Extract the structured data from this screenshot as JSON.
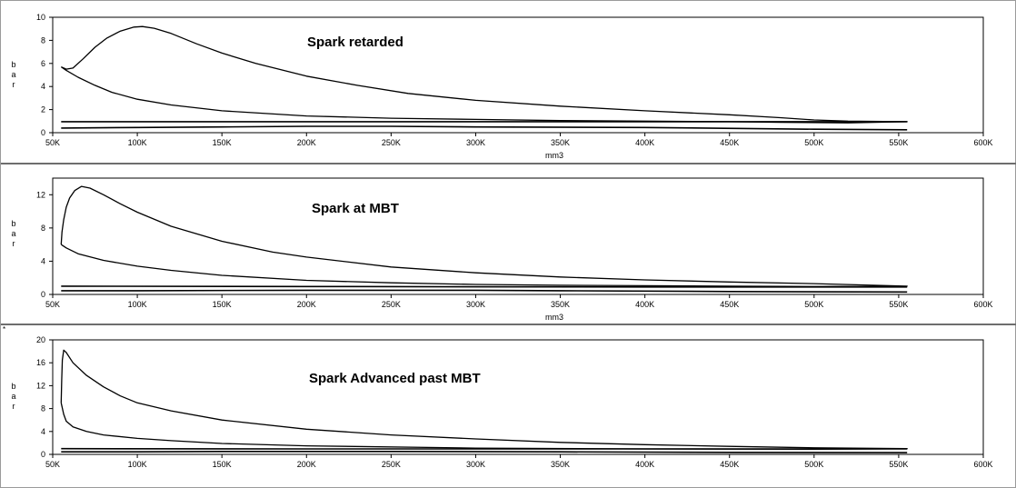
{
  "window": {
    "marker": "*"
  },
  "chart_data": [
    {
      "type": "line",
      "title": "Spark retarded",
      "xlabel": "mm3",
      "ylabel": "bar",
      "xlim": [
        50000,
        600000
      ],
      "ylim": [
        0,
        10
      ],
      "x_ticks": [
        "50K",
        "100K",
        "150K",
        "200K",
        "250K",
        "300K",
        "350K",
        "400K",
        "450K",
        "500K",
        "550K",
        "600K"
      ],
      "y_ticks": [
        "0",
        "2",
        "4",
        "6",
        "8",
        "10"
      ],
      "grid": false,
      "series": [
        {
          "points": [
            [
              55000,
              5.7
            ],
            [
              58000,
              5.5
            ],
            [
              62000,
              5.6
            ],
            [
              68000,
              6.4
            ],
            [
              75000,
              7.4
            ],
            [
              82000,
              8.2
            ],
            [
              90000,
              8.8
            ],
            [
              98000,
              9.15
            ],
            [
              103000,
              9.2
            ],
            [
              110000,
              9.05
            ],
            [
              120000,
              8.6
            ],
            [
              135000,
              7.7
            ],
            [
              150000,
              6.9
            ],
            [
              170000,
              6.0
            ],
            [
              200000,
              4.9
            ],
            [
              230000,
              4.1
            ],
            [
              260000,
              3.4
            ],
            [
              300000,
              2.8
            ],
            [
              350000,
              2.3
            ],
            [
              400000,
              1.9
            ],
            [
              450000,
              1.55
            ],
            [
              480000,
              1.3
            ],
            [
              500000,
              1.1
            ],
            [
              520000,
              1.0
            ],
            [
              555000,
              0.95
            ],
            [
              520000,
              0.85
            ],
            [
              480000,
              0.9
            ],
            [
              450000,
              0.95
            ],
            [
              400000,
              1.0
            ],
            [
              350000,
              1.05
            ],
            [
              300000,
              1.15
            ],
            [
              250000,
              1.25
            ],
            [
              200000,
              1.45
            ],
            [
              150000,
              1.9
            ],
            [
              120000,
              2.4
            ],
            [
              100000,
              2.9
            ],
            [
              85000,
              3.5
            ],
            [
              75000,
              4.1
            ],
            [
              65000,
              4.8
            ],
            [
              58000,
              5.4
            ],
            [
              55000,
              5.7
            ]
          ]
        },
        {
          "points": [
            [
              55000,
              0.95
            ],
            [
              100000,
              0.95
            ],
            [
              200000,
              0.95
            ],
            [
              300000,
              0.95
            ],
            [
              400000,
              0.95
            ],
            [
              500000,
              0.95
            ],
            [
              555000,
              0.95
            ]
          ]
        },
        {
          "points": [
            [
              555000,
              0.25
            ],
            [
              500000,
              0.3
            ],
            [
              400000,
              0.45
            ],
            [
              300000,
              0.5
            ],
            [
              250000,
              0.55
            ],
            [
              200000,
              0.55
            ],
            [
              150000,
              0.5
            ],
            [
              100000,
              0.45
            ],
            [
              55000,
              0.4
            ]
          ]
        }
      ]
    },
    {
      "type": "line",
      "title": "Spark at MBT",
      "xlabel": "mm3",
      "ylabel": "bar",
      "xlim": [
        50000,
        600000
      ],
      "ylim": [
        0,
        14
      ],
      "x_ticks": [
        "50K",
        "100K",
        "150K",
        "200K",
        "250K",
        "300K",
        "350K",
        "400K",
        "450K",
        "500K",
        "550K",
        "600K"
      ],
      "y_ticks": [
        "0",
        "4",
        "8",
        "12"
      ],
      "grid": false,
      "series": [
        {
          "points": [
            [
              55000,
              6.0
            ],
            [
              55500,
              7.5
            ],
            [
              56500,
              9.0
            ],
            [
              58000,
              10.5
            ],
            [
              60000,
              11.6
            ],
            [
              63000,
              12.5
            ],
            [
              67000,
              13.0
            ],
            [
              72000,
              12.8
            ],
            [
              80000,
              12.0
            ],
            [
              90000,
              10.9
            ],
            [
              100000,
              9.9
            ],
            [
              120000,
              8.2
            ],
            [
              150000,
              6.4
            ],
            [
              180000,
              5.1
            ],
            [
              200000,
              4.5
            ],
            [
              250000,
              3.3
            ],
            [
              300000,
              2.6
            ],
            [
              350000,
              2.1
            ],
            [
              400000,
              1.75
            ],
            [
              450000,
              1.5
            ],
            [
              500000,
              1.3
            ],
            [
              555000,
              1.0
            ],
            [
              500000,
              0.95
            ],
            [
              450000,
              1.0
            ],
            [
              400000,
              1.05
            ],
            [
              350000,
              1.1
            ],
            [
              300000,
              1.2
            ],
            [
              250000,
              1.4
            ],
            [
              200000,
              1.7
            ],
            [
              150000,
              2.3
            ],
            [
              120000,
              2.9
            ],
            [
              100000,
              3.4
            ],
            [
              80000,
              4.1
            ],
            [
              65000,
              4.9
            ],
            [
              58000,
              5.6
            ],
            [
              55000,
              6.0
            ]
          ]
        },
        {
          "points": [
            [
              55000,
              1.0
            ],
            [
              200000,
              0.95
            ],
            [
              400000,
              0.9
            ],
            [
              555000,
              0.9
            ]
          ]
        },
        {
          "points": [
            [
              555000,
              0.3
            ],
            [
              450000,
              0.35
            ],
            [
              350000,
              0.45
            ],
            [
              300000,
              0.5
            ],
            [
              200000,
              0.5
            ],
            [
              100000,
              0.45
            ],
            [
              55000,
              0.45
            ]
          ]
        }
      ]
    },
    {
      "type": "line",
      "title": "Spark Advanced past MBT",
      "xlabel": "",
      "ylabel": "bar",
      "xlim": [
        50000,
        600000
      ],
      "ylim": [
        0,
        20
      ],
      "x_ticks": [
        "50K",
        "100K",
        "150K",
        "200K",
        "250K",
        "300K",
        "350K",
        "400K",
        "450K",
        "500K",
        "550K",
        "600K"
      ],
      "y_ticks": [
        "0",
        "4",
        "8",
        "12",
        "16",
        "20"
      ],
      "grid": false,
      "series": [
        {
          "points": [
            [
              55000,
              9.0
            ],
            [
              55300,
              13.0
            ],
            [
              55700,
              16.5
            ],
            [
              56500,
              18.2
            ],
            [
              58000,
              17.8
            ],
            [
              62000,
              16.0
            ],
            [
              70000,
              13.8
            ],
            [
              80000,
              11.8
            ],
            [
              90000,
              10.2
            ],
            [
              100000,
              9.0
            ],
            [
              120000,
              7.6
            ],
            [
              150000,
              6.0
            ],
            [
              200000,
              4.4
            ],
            [
              250000,
              3.4
            ],
            [
              300000,
              2.7
            ],
            [
              350000,
              2.1
            ],
            [
              400000,
              1.7
            ],
            [
              450000,
              1.4
            ],
            [
              500000,
              1.15
            ],
            [
              555000,
              1.0
            ],
            [
              500000,
              0.9
            ],
            [
              400000,
              0.95
            ],
            [
              300000,
              1.1
            ],
            [
              200000,
              1.5
            ],
            [
              150000,
              1.9
            ],
            [
              120000,
              2.4
            ],
            [
              100000,
              2.8
            ],
            [
              80000,
              3.4
            ],
            [
              70000,
              4.0
            ],
            [
              62000,
              4.8
            ],
            [
              58000,
              5.8
            ],
            [
              56500,
              7.0
            ],
            [
              55000,
              9.0
            ]
          ]
        },
        {
          "points": [
            [
              55000,
              1.0
            ],
            [
              200000,
              0.95
            ],
            [
              400000,
              0.95
            ],
            [
              555000,
              0.95
            ]
          ]
        },
        {
          "points": [
            [
              555000,
              0.3
            ],
            [
              450000,
              0.35
            ],
            [
              350000,
              0.45
            ],
            [
              250000,
              0.5
            ],
            [
              150000,
              0.5
            ],
            [
              100000,
              0.45
            ],
            [
              55000,
              0.45
            ]
          ]
        }
      ]
    }
  ]
}
